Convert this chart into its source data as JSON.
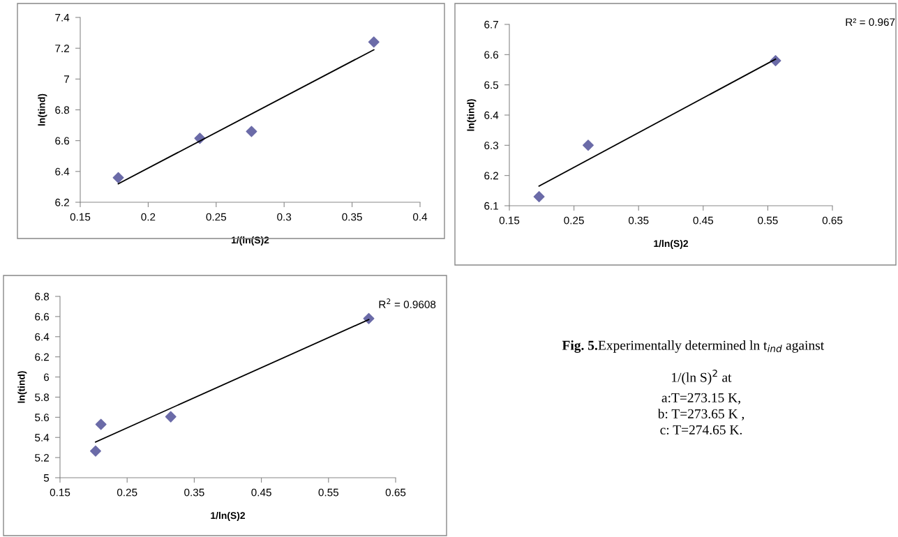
{
  "chart_data": [
    {
      "type": "scatter",
      "xlabel": "1/(ln(S)2",
      "ylabel": "ln(tind)",
      "xlim": [
        0.15,
        0.4
      ],
      "xticks": [
        0.15,
        0.2,
        0.25,
        0.3,
        0.35,
        0.4
      ],
      "ylim": [
        6.2,
        7.4
      ],
      "yticks": [
        6.2,
        6.4,
        6.6,
        6.8,
        7,
        7.2,
        7.4
      ],
      "marker": "diamond",
      "grid": false,
      "legend": false,
      "series": [
        {
          "type": "scatter",
          "color": "#6b6ba8",
          "x": [
            0.178,
            0.238,
            0.276,
            0.366
          ],
          "values": [
            6.36,
            6.615,
            6.66,
            7.24
          ]
        },
        {
          "type": "line",
          "color": "#000000",
          "marker": "none",
          "x": [
            0.178,
            0.366
          ],
          "values": [
            6.32,
            7.19
          ]
        }
      ]
    },
    {
      "type": "scatter",
      "xlabel": "1/ln(S)2",
      "ylabel": "ln(tind)",
      "xlim": [
        0.15,
        0.65
      ],
      "xticks": [
        0.15,
        0.25,
        0.35,
        0.45,
        0.55,
        0.65
      ],
      "ylim": [
        6.1,
        6.7
      ],
      "yticks": [
        6.1,
        6.2,
        6.3,
        6.4,
        6.5,
        6.6,
        6.7
      ],
      "marker": "diamond",
      "grid": false,
      "legend": false,
      "annotations": [
        "R² = 0.967"
      ],
      "series": [
        {
          "type": "scatter",
          "color": "#6b6ba8",
          "x": [
            0.196,
            0.272,
            0.562
          ],
          "values": [
            6.13,
            6.3,
            6.58
          ]
        },
        {
          "type": "line",
          "color": "#000000",
          "marker": "none",
          "x": [
            0.196,
            0.562
          ],
          "values": [
            6.165,
            6.585
          ]
        }
      ]
    },
    {
      "type": "scatter",
      "xlabel": "1/ln(S)2",
      "ylabel": "ln(tind)",
      "xlim": [
        0.15,
        0.65
      ],
      "xticks": [
        0.15,
        0.25,
        0.35,
        0.45,
        0.55,
        0.65
      ],
      "ylim": [
        5,
        6.8
      ],
      "yticks": [
        5,
        5.2,
        5.4,
        5.6,
        5.8,
        6,
        6.2,
        6.4,
        6.6,
        6.8
      ],
      "marker": "diamond",
      "grid": false,
      "legend": false,
      "annotations": [
        "R$^{2}$ = 0.9608"
      ],
      "series": [
        {
          "type": "scatter",
          "color": "#6b6ba8",
          "x": [
            0.203,
            0.211,
            0.315,
            0.61
          ],
          "values": [
            5.265,
            5.53,
            5.605,
            6.58
          ]
        },
        {
          "type": "line",
          "color": "#000000",
          "marker": "none",
          "x": [
            0.203,
            0.61
          ],
          "values": [
            5.355,
            6.57
          ]
        }
      ]
    },
    {
      "type": "other",
      "annotations": [
        "Fig. 5.",
        "Experimentally determined ln t$_{ind}$ against",
        "1/(ln S)$^{2}$ at",
        "a:T=273.15 K,",
        "b: T=273.65 K ,",
        "c: T=274.65 K."
      ]
    }
  ]
}
